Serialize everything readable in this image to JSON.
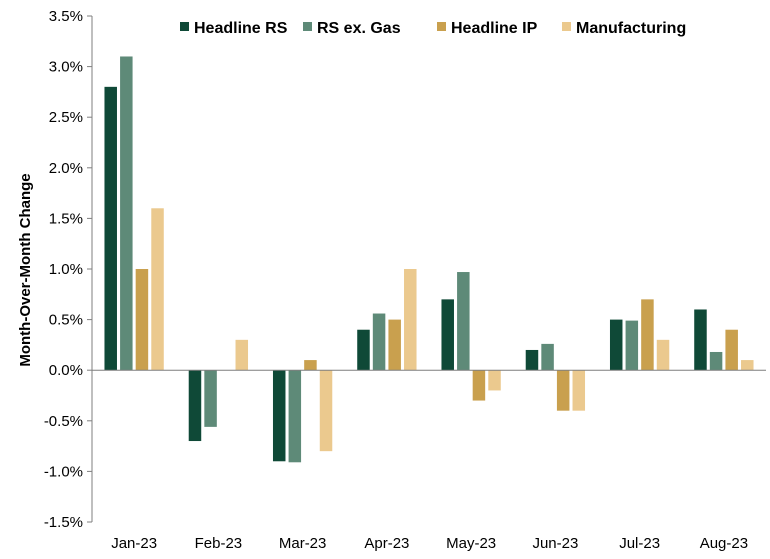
{
  "chart_data": {
    "type": "bar",
    "categories": [
      "Jan-23",
      "Feb-23",
      "Mar-23",
      "Apr-23",
      "May-23",
      "Jun-23",
      "Jul-23",
      "Aug-23"
    ],
    "series": [
      {
        "name": "Headline RS",
        "color": "#0f4937",
        "values": [
          2.8,
          -0.7,
          -0.9,
          0.4,
          0.7,
          0.2,
          0.5,
          0.6
        ]
      },
      {
        "name": "RS ex. Gas",
        "color": "#5e8a78",
        "values": [
          3.1,
          -0.56,
          -0.91,
          0.56,
          0.97,
          0.26,
          0.49,
          0.18
        ]
      },
      {
        "name": "Headline IP",
        "color": "#c9a04e",
        "values": [
          1.0,
          0.0,
          0.1,
          0.5,
          -0.3,
          -0.4,
          0.7,
          0.4
        ]
      },
      {
        "name": "Manufacturing",
        "color": "#ebc98e",
        "values": [
          1.6,
          0.3,
          -0.8,
          1.0,
          -0.2,
          -0.4,
          0.3,
          0.1
        ]
      }
    ],
    "title": "",
    "xlabel": "",
    "ylabel": "Month-Over-Month Change",
    "ylim": [
      -1.5,
      3.5
    ],
    "yticks": [
      -1.5,
      -1.0,
      -0.5,
      0.0,
      0.5,
      1.0,
      1.5,
      2.0,
      2.5,
      3.0,
      3.5
    ],
    "ytick_labels": [
      "-1.5%",
      "-1.0%",
      "-0.5%",
      "0.0%",
      "0.5%",
      "1.0%",
      "1.5%",
      "2.0%",
      "2.5%",
      "3.0%",
      "3.5%"
    ],
    "grid": false,
    "legend": "top"
  }
}
